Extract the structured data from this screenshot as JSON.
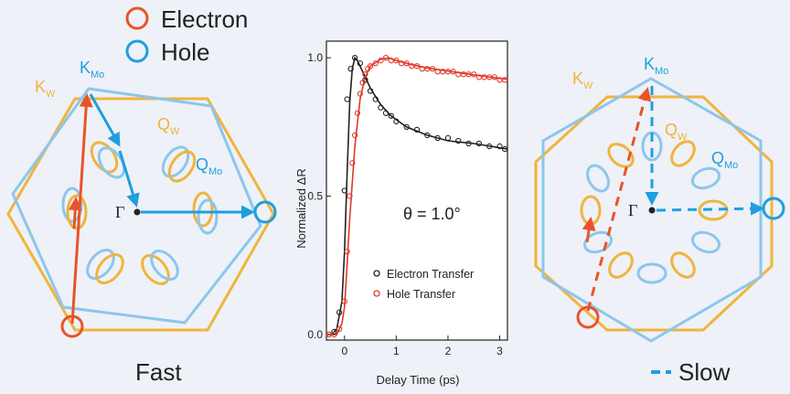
{
  "legend": {
    "electron_label": "Electron",
    "hole_label": "Hole",
    "electron_color": "#e8542a",
    "hole_color": "#1e9fe0"
  },
  "colors": {
    "w_lattice": "#f0b43c",
    "mo_lattice": "#8cc6ec",
    "electron": "#e8542a",
    "hole": "#1e9fe0",
    "electron_curve": "#e03a2b",
    "hole_curve": "#222222"
  },
  "left_panel": {
    "k_w": "K",
    "k_w_sub": "W",
    "k_mo": "K",
    "k_mo_sub": "Mo",
    "q_w": "Q",
    "q_w_sub": "W",
    "q_mo": "Q",
    "q_mo_sub": "Mo",
    "gamma": "Γ",
    "caption": "Fast"
  },
  "right_panel": {
    "k_w": "K",
    "k_w_sub": "W",
    "k_mo": "K",
    "k_mo_sub": "Mo",
    "q_w": "Q",
    "q_w_sub": "W",
    "q_mo": "Q",
    "q_mo_sub": "Mo",
    "gamma": "Γ",
    "caption": "Slow"
  },
  "chart_data": {
    "type": "scatter",
    "title": "",
    "xlabel": "Delay Time (ps)",
    "ylabel": "Normalized ΔR",
    "annotation": "θ = 1.0°",
    "xlim": [
      -0.35,
      3.15
    ],
    "ylim": [
      -0.02,
      1.06
    ],
    "x_ticks": [
      0,
      1,
      2,
      3
    ],
    "y_ticks": [
      0.0,
      0.5,
      1.0
    ],
    "legend_position": "bottom-right",
    "series": [
      {
        "name": "Electron Transfer",
        "color": "#222222",
        "points": [
          [
            -0.3,
            0.0
          ],
          [
            -0.2,
            0.01
          ],
          [
            -0.1,
            0.08
          ],
          [
            0.0,
            0.52
          ],
          [
            0.05,
            0.85
          ],
          [
            0.12,
            0.96
          ],
          [
            0.2,
            1.0
          ],
          [
            0.3,
            0.98
          ],
          [
            0.4,
            0.92
          ],
          [
            0.5,
            0.88
          ],
          [
            0.6,
            0.85
          ],
          [
            0.7,
            0.82
          ],
          [
            0.8,
            0.8
          ],
          [
            0.9,
            0.79
          ],
          [
            1.0,
            0.77
          ],
          [
            1.2,
            0.75
          ],
          [
            1.4,
            0.74
          ],
          [
            1.6,
            0.72
          ],
          [
            1.8,
            0.71
          ],
          [
            2.0,
            0.71
          ],
          [
            2.2,
            0.7
          ],
          [
            2.4,
            0.69
          ],
          [
            2.6,
            0.69
          ],
          [
            2.8,
            0.68
          ],
          [
            3.0,
            0.68
          ],
          [
            3.1,
            0.67
          ]
        ],
        "fit": [
          [
            -0.35,
            0.0
          ],
          [
            -0.25,
            0.0
          ],
          [
            -0.15,
            0.02
          ],
          [
            -0.05,
            0.12
          ],
          [
            0.0,
            0.3
          ],
          [
            0.05,
            0.58
          ],
          [
            0.1,
            0.84
          ],
          [
            0.15,
            0.96
          ],
          [
            0.2,
            1.0
          ],
          [
            0.25,
            0.99
          ],
          [
            0.35,
            0.95
          ],
          [
            0.5,
            0.89
          ],
          [
            0.7,
            0.83
          ],
          [
            0.9,
            0.79
          ],
          [
            1.2,
            0.75
          ],
          [
            1.6,
            0.72
          ],
          [
            2.0,
            0.7
          ],
          [
            2.5,
            0.69
          ],
          [
            3.15,
            0.67
          ]
        ]
      },
      {
        "name": "Hole Transfer",
        "color": "#e03a2b",
        "points": [
          [
            -0.3,
            0.0
          ],
          [
            -0.2,
            0.0
          ],
          [
            -0.1,
            0.02
          ],
          [
            0.0,
            0.12
          ],
          [
            0.05,
            0.3
          ],
          [
            0.1,
            0.5
          ],
          [
            0.15,
            0.62
          ],
          [
            0.2,
            0.72
          ],
          [
            0.25,
            0.8
          ],
          [
            0.3,
            0.87
          ],
          [
            0.35,
            0.91
          ],
          [
            0.4,
            0.94
          ],
          [
            0.45,
            0.96
          ],
          [
            0.5,
            0.97
          ],
          [
            0.6,
            0.98
          ],
          [
            0.7,
            0.99
          ],
          [
            0.8,
            1.0
          ],
          [
            0.9,
            0.99
          ],
          [
            1.0,
            0.99
          ],
          [
            1.1,
            0.98
          ],
          [
            1.2,
            0.98
          ],
          [
            1.3,
            0.97
          ],
          [
            1.4,
            0.97
          ],
          [
            1.5,
            0.96
          ],
          [
            1.6,
            0.96
          ],
          [
            1.7,
            0.96
          ],
          [
            1.8,
            0.95
          ],
          [
            1.9,
            0.95
          ],
          [
            2.0,
            0.95
          ],
          [
            2.1,
            0.95
          ],
          [
            2.2,
            0.94
          ],
          [
            2.3,
            0.94
          ],
          [
            2.4,
            0.94
          ],
          [
            2.5,
            0.94
          ],
          [
            2.6,
            0.93
          ],
          [
            2.7,
            0.93
          ],
          [
            2.8,
            0.93
          ],
          [
            2.9,
            0.93
          ],
          [
            3.0,
            0.92
          ],
          [
            3.1,
            0.92
          ]
        ],
        "fit": [
          [
            -0.35,
            0.0
          ],
          [
            -0.15,
            0.0
          ],
          [
            -0.05,
            0.04
          ],
          [
            0.0,
            0.1
          ],
          [
            0.05,
            0.25
          ],
          [
            0.1,
            0.42
          ],
          [
            0.2,
            0.68
          ],
          [
            0.3,
            0.85
          ],
          [
            0.4,
            0.93
          ],
          [
            0.5,
            0.97
          ],
          [
            0.7,
            0.995
          ],
          [
            0.85,
            1.0
          ],
          [
            1.0,
            0.99
          ],
          [
            1.3,
            0.975
          ],
          [
            1.6,
            0.963
          ],
          [
            2.0,
            0.952
          ],
          [
            2.5,
            0.938
          ],
          [
            3.15,
            0.922
          ]
        ]
      }
    ]
  }
}
